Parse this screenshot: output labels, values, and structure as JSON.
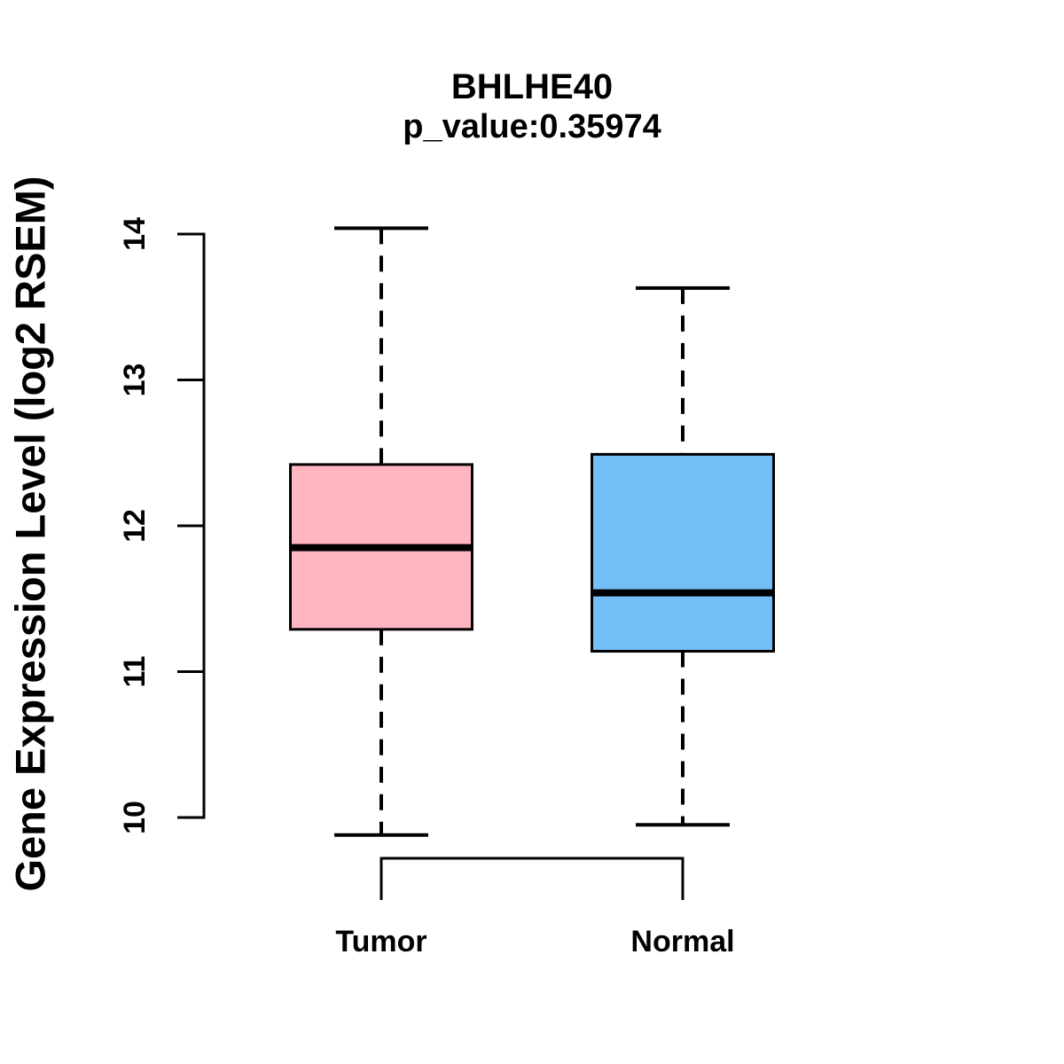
{
  "chart_data": {
    "type": "boxplot",
    "title": "BHLHE40",
    "subtitle": "p_value:0.35974",
    "ylabel": "Gene Expression Level (log2 RSEM)",
    "xlabel": "",
    "ylim": [
      10,
      14
    ],
    "yticks": [
      "10",
      "11",
      "12",
      "13",
      "14"
    ],
    "grid": "off",
    "legend": "none",
    "categories": [
      "Tumor",
      "Normal"
    ],
    "series": [
      {
        "name": "Tumor",
        "color": "#FFB6C1",
        "whisker_low": 9.88,
        "q1": 11.29,
        "median": 11.85,
        "q3": 12.42,
        "whisker_high": 14.04
      },
      {
        "name": "Normal",
        "color": "#74BFF7",
        "whisker_low": 9.95,
        "q1": 11.14,
        "median": 11.54,
        "q3": 12.49,
        "whisker_high": 13.63
      }
    ],
    "annotations": {
      "comparison_bracket_between": [
        "Tumor",
        "Normal"
      ]
    },
    "colors": {
      "stroke": "#000000",
      "background": "#FFFFFF",
      "tumor_fill": "#FFB6C1",
      "normal_fill": "#74BFF7"
    }
  }
}
